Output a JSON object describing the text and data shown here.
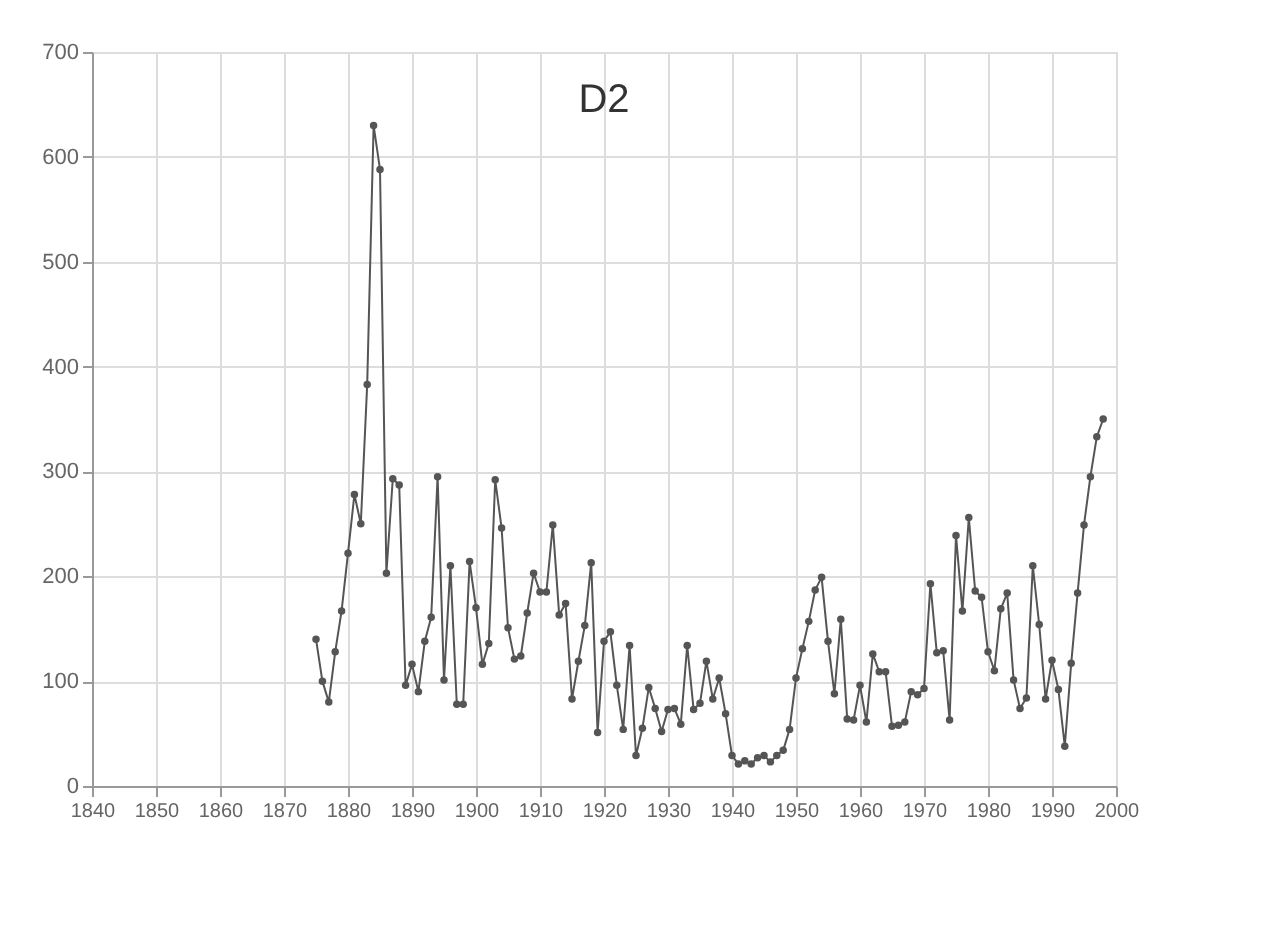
{
  "chart_data": {
    "type": "line",
    "title": "D2",
    "x": [
      1875,
      1876,
      1877,
      1878,
      1879,
      1880,
      1881,
      1882,
      1883,
      1884,
      1885,
      1886,
      1887,
      1888,
      1889,
      1890,
      1891,
      1892,
      1893,
      1894,
      1895,
      1896,
      1897,
      1898,
      1899,
      1900,
      1901,
      1902,
      1903,
      1904,
      1905,
      1906,
      1907,
      1908,
      1909,
      1910,
      1911,
      1912,
      1913,
      1914,
      1915,
      1916,
      1917,
      1918,
      1919,
      1920,
      1921,
      1922,
      1923,
      1924,
      1925,
      1926,
      1927,
      1928,
      1929,
      1930,
      1931,
      1932,
      1933,
      1934,
      1935,
      1936,
      1937,
      1938,
      1939,
      1940,
      1941,
      1942,
      1943,
      1944,
      1945,
      1946,
      1947,
      1948,
      1949,
      1950,
      1951,
      1952,
      1953,
      1954,
      1955,
      1956,
      1957,
      1958,
      1959,
      1960,
      1961,
      1962,
      1963,
      1964,
      1965,
      1966,
      1967,
      1968,
      1969,
      1970,
      1971,
      1972,
      1973,
      1974,
      1975,
      1976,
      1977,
      1978,
      1979,
      1980,
      1981,
      1982,
      1983,
      1984,
      1985,
      1986,
      1987,
      1988,
      1989,
      1990,
      1991,
      1992,
      1993,
      1994,
      1995,
      1996,
      1997,
      1998
    ],
    "series": [
      {
        "color": "#555555",
        "values": [
          140,
          100,
          80,
          128,
          167,
          222,
          278,
          250,
          383,
          630,
          588,
          203,
          293,
          287,
          96,
          116,
          90,
          138,
          161,
          295,
          101,
          210,
          78,
          78,
          214,
          170,
          116,
          136,
          292,
          246,
          151,
          121,
          124,
          165,
          203,
          185,
          185,
          249,
          163,
          174,
          83,
          119,
          153,
          213,
          51,
          138,
          147,
          96,
          54,
          134,
          29,
          55,
          94,
          74,
          52,
          73,
          74,
          59,
          134,
          73,
          79,
          119,
          83,
          103,
          69,
          29,
          21,
          24,
          21,
          27,
          29,
          23,
          29,
          34,
          54,
          103,
          131,
          157,
          187,
          199,
          138,
          88,
          159,
          64,
          63,
          96,
          61,
          126,
          109,
          109,
          57,
          58,
          61,
          90,
          87,
          93,
          193,
          127,
          129,
          63,
          239,
          167,
          256,
          186,
          180,
          128,
          110,
          169,
          184,
          101,
          74,
          84,
          210,
          154,
          83,
          120,
          92,
          38,
          117,
          184,
          249,
          295,
          333,
          350
        ]
      }
    ],
    "xlim": [
      1840,
      2000
    ],
    "xticks": [
      1840,
      1850,
      1860,
      1870,
      1880,
      1890,
      1900,
      1910,
      1920,
      1930,
      1940,
      1950,
      1960,
      1970,
      1980,
      1990,
      2000
    ],
    "ylim": [
      0,
      700
    ],
    "yticks": [
      0,
      100,
      200,
      300,
      400,
      500,
      600,
      700
    ],
    "grid": true,
    "marker": "circle",
    "line_style": "solid"
  }
}
